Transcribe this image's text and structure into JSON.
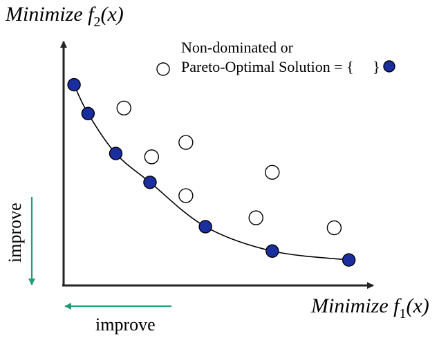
{
  "colors": {
    "axis": "#222222",
    "pareto_fill": "#1a2ea0",
    "pareto_stroke": "#000000",
    "dominated_fill": "#ffffff",
    "dominated_stroke": "#000000",
    "improve_arrow": "#1f9e78",
    "curve": "#000000"
  },
  "y_axis_title": {
    "prefix": "Minimize ",
    "func": "f",
    "sub": "2",
    "arg": "(x)"
  },
  "x_axis_title": {
    "prefix": "Minimize ",
    "func": "f",
    "sub": "1",
    "arg": "(x)"
  },
  "legend": {
    "line1": "Non-dominated or",
    "line2_prefix": "Pareto-Optimal Solution = {",
    "line2_suffix": "}"
  },
  "improve_vertical": "improve",
  "improve_horizontal": "improve",
  "legend_icon": "hollow-circle-icon",
  "chart_data": {
    "type": "scatter",
    "series": [
      {
        "values": [
          [
            0.32,
            9.05
          ],
          [
            0.75,
            7.75
          ],
          [
            1.6,
            5.95
          ],
          [
            2.65,
            4.65
          ],
          [
            4.35,
            2.65
          ],
          [
            6.4,
            1.55
          ],
          [
            8.75,
            1.15
          ]
        ]
      },
      {
        "values": [
          [
            1.85,
            8.0
          ],
          [
            3.75,
            6.45
          ],
          [
            2.7,
            5.8
          ],
          [
            3.75,
            4.05
          ],
          [
            5.9,
            3.05
          ],
          [
            6.4,
            5.1
          ],
          [
            8.3,
            2.6
          ]
        ]
      }
    ],
    "xlim": [
      0,
      9.5
    ],
    "ylim": [
      0,
      11
    ]
  }
}
